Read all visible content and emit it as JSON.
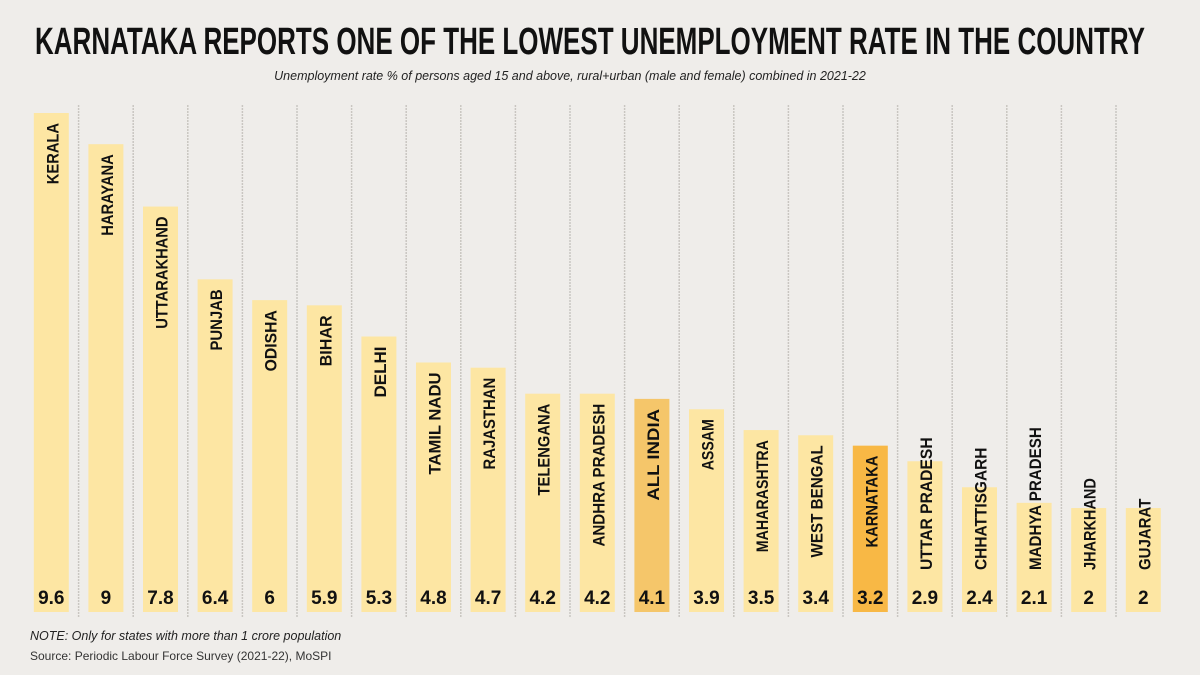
{
  "chart_data": {
    "type": "bar",
    "title": "KARNATAKA REPORTS ONE OF THE LOWEST UNEMPLOYMENT RATE IN THE COUNTRY",
    "subtitle": "Unemployment rate % of persons aged 15 and above, rural+urban (male and female) combined in 2021-22",
    "xlabel": "",
    "ylabel": "",
    "ylim": [
      0,
      9.6
    ],
    "grid": false,
    "categories": [
      "KERALA",
      "HARAYANA",
      "UTTARAKHAND",
      "PUNJAB",
      "ODISHA",
      "BIHAR",
      "DELHI",
      "TAMIL NADU",
      "RAJASTHAN",
      "TELENGANA",
      "ANDHRA PRADESH",
      "ALL INDIA",
      "ASSAM",
      "MAHARASHTRA",
      "WEST BENGAL",
      "KARNATAKA",
      "UTTAR PRADESH",
      "CHHATTISGARH",
      "MADHYA PRADESH",
      "JHARKHAND",
      "GUJARAT"
    ],
    "values": [
      9.6,
      9,
      7.8,
      6.4,
      6,
      5.9,
      5.3,
      4.8,
      4.7,
      4.2,
      4.2,
      4.1,
      3.9,
      3.5,
      3.4,
      3.2,
      2.9,
      2.4,
      2.1,
      2,
      2
    ],
    "value_labels": [
      "9.6",
      "9",
      "7.8",
      "6.4",
      "6",
      "5.9",
      "5.3",
      "4.8",
      "4.7",
      "4.2",
      "4.2",
      "4.1",
      "3.9",
      "3.5",
      "3.4",
      "3.2",
      "2.9",
      "2.4",
      "2.1",
      "2",
      "2"
    ],
    "highlights": {
      "ALL INDIA": "#f5c66a",
      "KARNATAKA": "#f8b845"
    },
    "colors": {
      "bar": "#fde6a3",
      "background": "#efedea",
      "divider": "#c9c6c1"
    }
  },
  "footer": {
    "note": "NOTE: Only for states with more than 1 crore population",
    "source": "Source: Periodic Labour Force Survey (2021-22), MoSPI"
  }
}
